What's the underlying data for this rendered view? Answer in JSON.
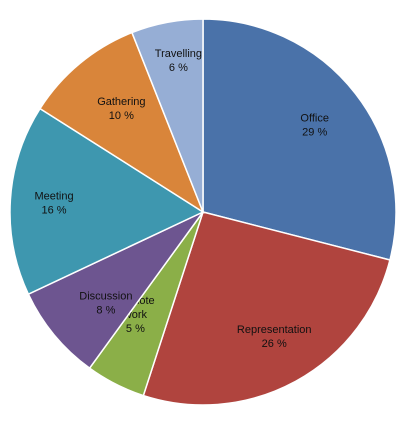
{
  "chart_data": {
    "type": "pie",
    "title": "",
    "start_angle_deg": -90,
    "direction": "clockwise",
    "slices": [
      {
        "label_lines": [
          "Office",
          "29 %"
        ],
        "value": 29,
        "color": "#4A72A9"
      },
      {
        "label_lines": [
          "Representation",
          "26 %"
        ],
        "value": 26,
        "color": "#B0443E"
      },
      {
        "label_lines": [
          "Remote",
          "work",
          "5 %"
        ],
        "value": 5,
        "color": "#8BAF48"
      },
      {
        "label_lines": [
          "Discussion",
          "8 %"
        ],
        "value": 8,
        "color": "#6D5590"
      },
      {
        "label_lines": [
          "Meeting",
          "16 %"
        ],
        "value": 16,
        "color": "#3E97AF"
      },
      {
        "label_lines": [
          "Gathering",
          "10 %"
        ],
        "value": 10,
        "color": "#D9853A"
      },
      {
        "label_lines": [
          "Travelling",
          "6 %"
        ],
        "value": 6,
        "color": "#96AED5"
      }
    ]
  }
}
